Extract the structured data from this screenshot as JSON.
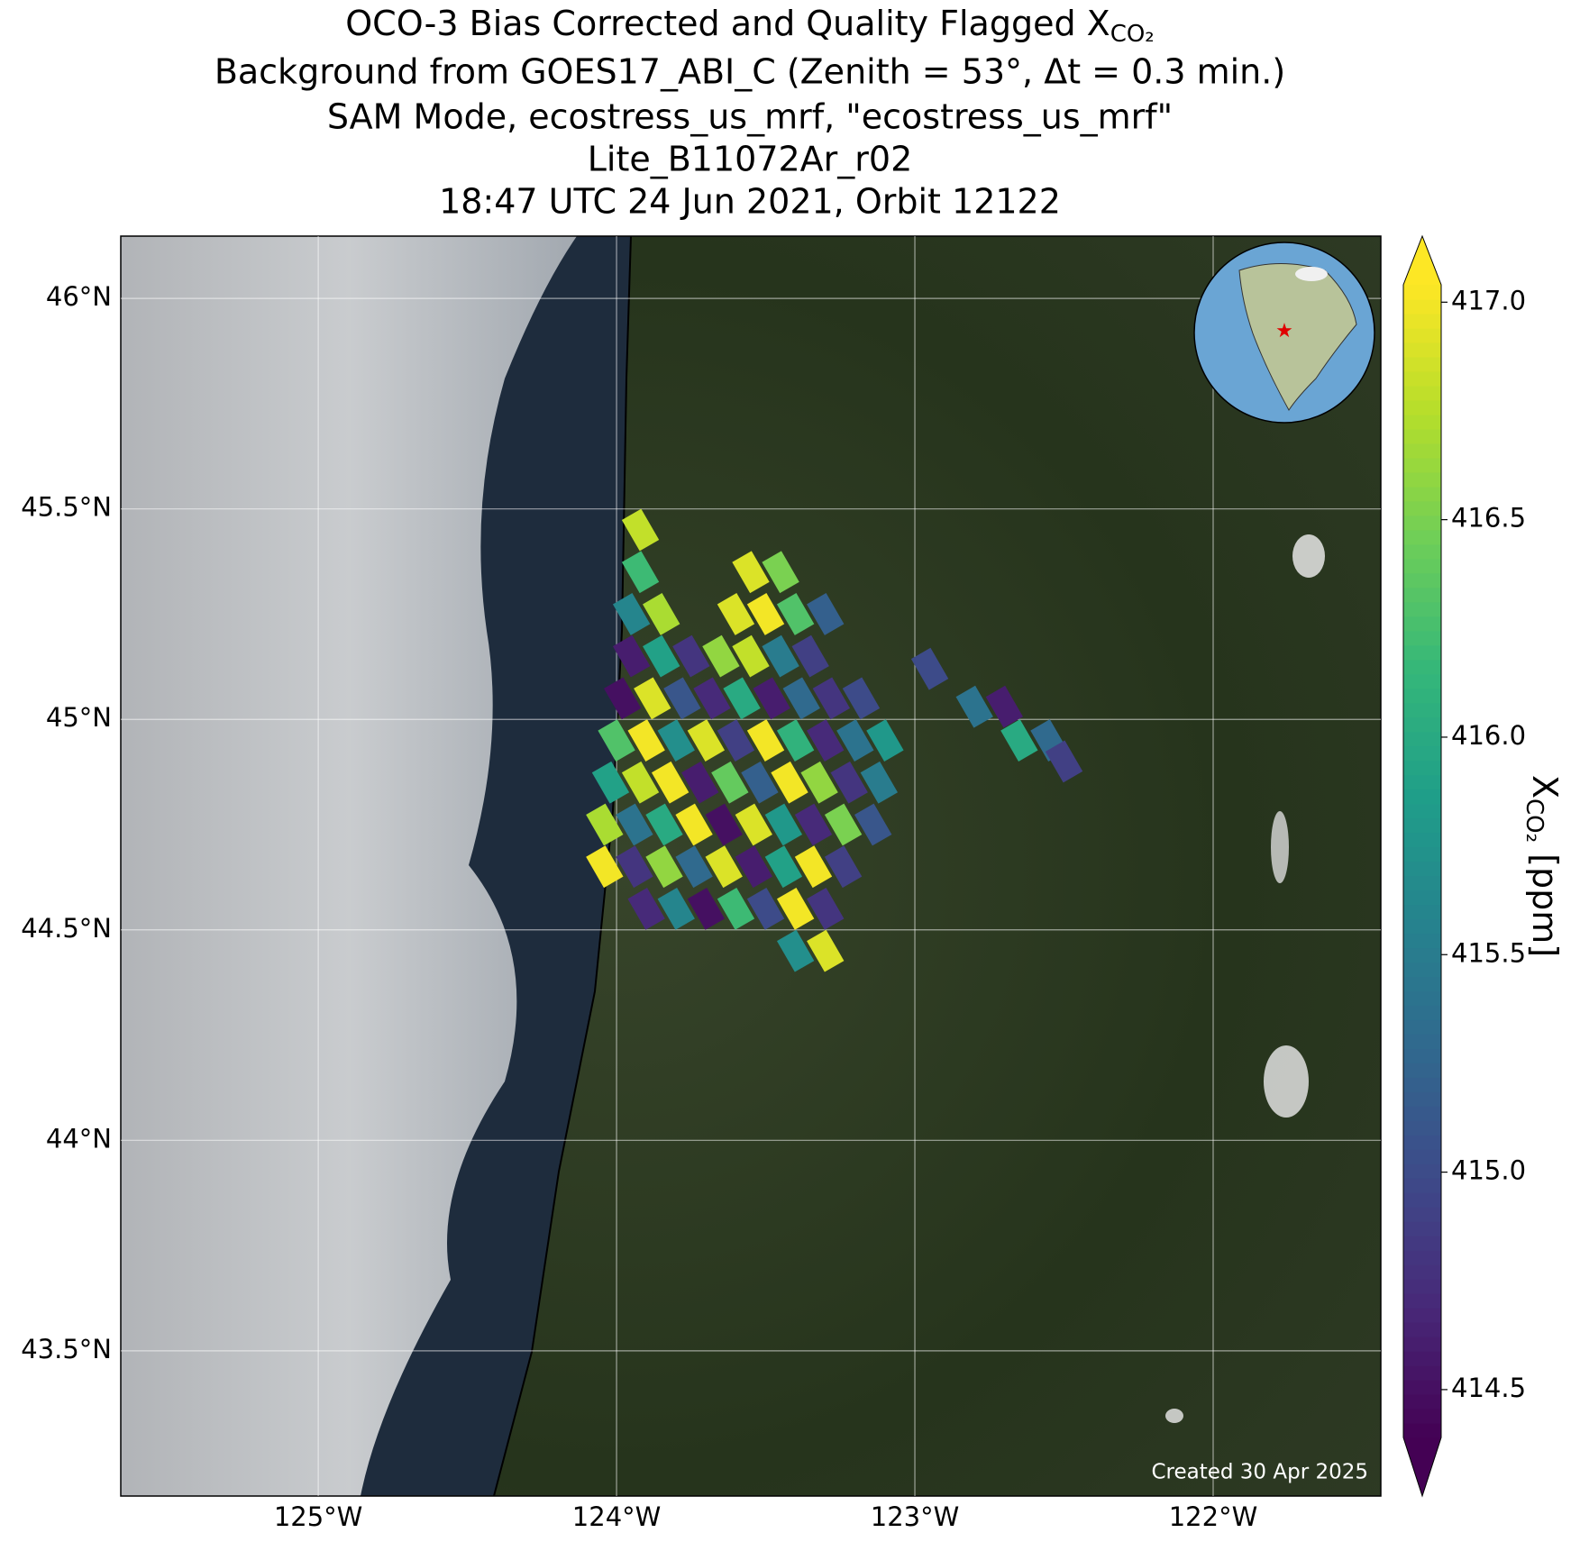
{
  "chart_data": {
    "type": "map-scatter",
    "title": [
      "OCO-3 Bias Corrected and Quality Flagged X",
      "Background from GOES17_ABI_C (Zenith = 53°, Δt =  0.3 min.)",
      "SAM Mode, ecostress_us_mrf, \"ecostress_us_mrf\"",
      "Lite_B11072Ar_r02",
      "18:47 UTC 24 Jun 2021, Orbit 12122"
    ],
    "title_subscript": "CO₂",
    "colorbar_label": {
      "main": "X",
      "sub": "CO₂",
      "unit": " [ppm]"
    },
    "annotation": "Created 30 Apr 2025",
    "colormap": "viridis",
    "clim": [
      414.39,
      417.04
    ],
    "colorbar_ticks": [
      {
        "value": 417,
        "label": "417.0"
      },
      416.5,
      {
        "value": 416,
        "label": "416.0"
      },
      415.5,
      {
        "value": 415,
        "label": "415.0"
      },
      414.5
    ],
    "xlim": [
      -125.662,
      -121.438
    ],
    "ylim": [
      43.155,
      46.148
    ],
    "xticks": [
      {
        "value": -125,
        "label": "125°W"
      },
      {
        "value": -124,
        "label": "124°W"
      },
      {
        "value": -123,
        "label": "123°W"
      },
      {
        "value": -122,
        "label": "122°W"
      }
    ],
    "yticks": [
      {
        "value": 46,
        "label": "46°N"
      },
      {
        "value": 45.5,
        "label": "45.5°N"
      },
      {
        "value": 45,
        "label": "45°N"
      },
      {
        "value": 44.5,
        "label": "44.5°N"
      },
      {
        "value": 44,
        "label": "44°N"
      },
      {
        "value": 43.5,
        "label": "43.5°N"
      }
    ],
    "grid": true,
    "x": [
      -123.92,
      -123.92,
      -123.55,
      -123.45,
      -123.95,
      -123.85,
      -123.6,
      -123.5,
      -123.4,
      -123.3,
      -123.95,
      -123.85,
      -123.75,
      -123.65,
      -123.55,
      -123.45,
      -123.35,
      -123.98,
      -123.88,
      -123.78,
      -123.68,
      -123.58,
      -123.48,
      -123.38,
      -123.28,
      -123.18,
      -124.0,
      -123.9,
      -123.8,
      -123.7,
      -123.6,
      -123.5,
      -123.4,
      -123.3,
      -123.2,
      -123.1,
      -124.02,
      -123.92,
      -123.82,
      -123.72,
      -123.62,
      -123.52,
      -123.42,
      -123.32,
      -123.22,
      -123.12,
      -124.04,
      -123.94,
      -123.84,
      -123.74,
      -123.64,
      -123.54,
      -123.44,
      -123.34,
      -123.24,
      -123.14,
      -124.04,
      -123.94,
      -123.84,
      -123.74,
      -123.64,
      -123.54,
      -123.44,
      -123.34,
      -123.24,
      -123.9,
      -123.8,
      -123.7,
      -123.6,
      -123.5,
      -123.4,
      -123.3,
      -123.4,
      -123.3,
      -122.95,
      -122.8,
      -122.7,
      -122.65,
      -122.55,
      -122.5
    ],
    "y": [
      45.45,
      45.35,
      45.35,
      45.35,
      45.25,
      45.25,
      45.25,
      45.25,
      45.25,
      45.25,
      45.15,
      45.15,
      45.15,
      45.15,
      45.15,
      45.15,
      45.15,
      45.05,
      45.05,
      45.05,
      45.05,
      45.05,
      45.05,
      45.05,
      45.05,
      45.05,
      44.95,
      44.95,
      44.95,
      44.95,
      44.95,
      44.95,
      44.95,
      44.95,
      44.95,
      44.95,
      44.85,
      44.85,
      44.85,
      44.85,
      44.85,
      44.85,
      44.85,
      44.85,
      44.85,
      44.85,
      44.75,
      44.75,
      44.75,
      44.75,
      44.75,
      44.75,
      44.75,
      44.75,
      44.75,
      44.75,
      44.65,
      44.65,
      44.65,
      44.65,
      44.65,
      44.65,
      44.65,
      44.65,
      44.65,
      44.55,
      44.55,
      44.55,
      44.55,
      44.55,
      44.55,
      44.55,
      44.45,
      44.45,
      45.12,
      45.03,
      45.03,
      44.95,
      44.95,
      44.9
    ],
    "values": [
      416.8,
      416.2,
      416.9,
      416.5,
      415.6,
      416.7,
      416.9,
      417.0,
      416.3,
      415.2,
      414.6,
      415.9,
      414.8,
      416.6,
      416.8,
      415.5,
      414.9,
      414.5,
      416.9,
      415.1,
      414.7,
      416.0,
      414.6,
      415.3,
      414.8,
      415.0,
      416.3,
      417.0,
      415.7,
      416.9,
      414.9,
      417.0,
      416.1,
      414.7,
      415.4,
      415.8,
      415.9,
      416.8,
      417.0,
      414.6,
      416.4,
      415.2,
      417.0,
      416.6,
      414.8,
      415.5,
      416.7,
      415.4,
      416.0,
      417.0,
      414.5,
      416.9,
      415.8,
      414.7,
      416.5,
      415.1,
      417.0,
      414.8,
      416.6,
      415.3,
      416.9,
      414.6,
      415.9,
      417.0,
      414.9,
      414.7,
      415.6,
      414.5,
      416.2,
      415.0,
      417.0,
      414.8,
      415.7,
      416.9,
      415.0,
      415.4,
      414.6,
      416.0,
      415.3,
      414.9
    ]
  }
}
